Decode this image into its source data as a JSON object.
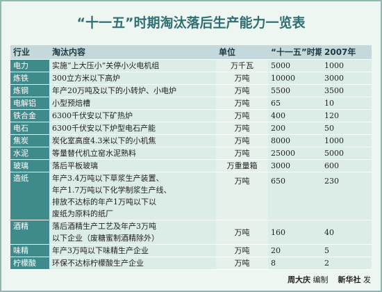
{
  "header": {
    "title": "“十一五”时期淘汰落后生产能力一览表"
  },
  "table": {
    "columns": [
      "行业",
      "淘汰内容",
      "单位",
      "“十一五”时期",
      "2007年"
    ],
    "rows": [
      [
        "电力",
        [
          "实施“上大压小”关停小火电机组"
        ],
        "万千瓦",
        "5000",
        "1000"
      ],
      [
        "炼铁",
        [
          "300立方米以下高炉"
        ],
        "万吨",
        "10000",
        "3000"
      ],
      [
        "炼钢",
        [
          "年产20万吨及以下的小转炉、小电炉"
        ],
        "万吨",
        "5500",
        "3500"
      ],
      [
        "电解铝",
        [
          "小型预焙槽"
        ],
        "万吨",
        "65",
        "10"
      ],
      [
        "铁合金",
        [
          "6300千伏安以下矿热炉"
        ],
        "万吨",
        "400",
        "120"
      ],
      [
        "电石",
        [
          "6300千伏安以下炉型电石产能"
        ],
        "万吨",
        "200",
        "50"
      ],
      [
        "焦炭",
        [
          "炭化室高度4.3米以下的小机焦"
        ],
        "万吨",
        "8000",
        "1000"
      ],
      [
        "水泥",
        [
          "等量替代机立窑水泥熟料"
        ],
        "万吨",
        "25000",
        "5000"
      ],
      [
        "玻璃",
        [
          "落后平板玻璃"
        ],
        "万重量箱",
        "3000",
        "600"
      ],
      [
        "造纸",
        [
          "年产3.4万吨以下草浆生产装置、",
          "年产1.7万吨以下化学制浆生产线、",
          "排放不达标的年产1万吨以下以",
          "废纸为原料的纸厂"
        ],
        "万吨",
        "650",
        "230"
      ],
      [
        "酒精",
        [
          "落后酒精生产工艺及年产3万吨",
          "以下企业（废糖蜜制酒精除外）"
        ],
        "万吨",
        "160",
        "40"
      ],
      [
        "味精",
        [
          "年产3万吨以下味精生产企业"
        ],
        "万吨",
        "20",
        "5"
      ],
      [
        "柠檬酸",
        [
          "环保不达标柠檬酸生产企业"
        ],
        "万吨",
        "8",
        "2"
      ]
    ]
  },
  "footer": {
    "author": "周大庆",
    "author_role": "编制",
    "publisher": "新华社",
    "publisher_role": "发"
  }
}
